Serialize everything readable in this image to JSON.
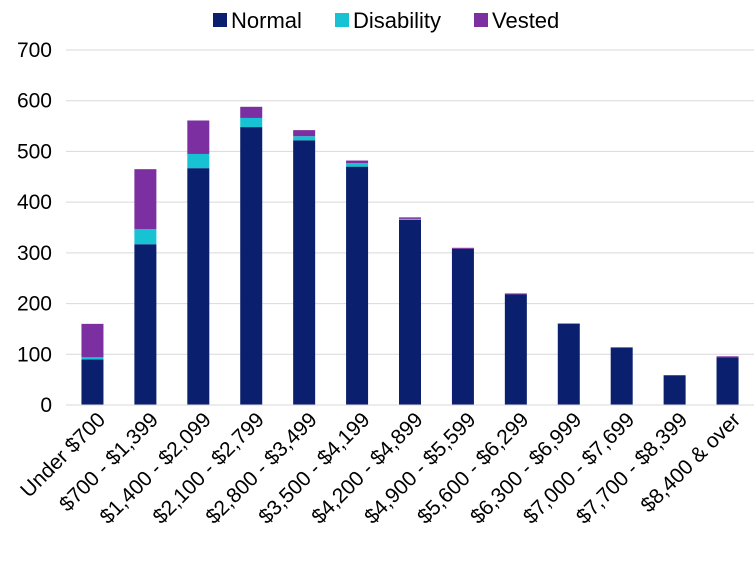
{
  "chart_data": {
    "type": "bar",
    "stacked": true,
    "categories": [
      "Under $700",
      "$700 - $1,399",
      "$1,400 - $2,099",
      "$2,100 - $2,799",
      "$2,800 - $3,499",
      "$3,500 - $4,199",
      "$4,200 - $4,899",
      "$4,900 - $5,599",
      "$5,600 - $6,299",
      "$6,300 - $6,999",
      "$7,000 - $7,699",
      "$7,700 - $8,399",
      "$8,400 & over"
    ],
    "series": [
      {
        "name": "Normal",
        "color": "#0a1f6e",
        "values": [
          90,
          317,
          467,
          548,
          522,
          470,
          365,
          308,
          218,
          160,
          113,
          58,
          94
        ]
      },
      {
        "name": "Disability",
        "color": "#17c3d2",
        "values": [
          4,
          30,
          28,
          18,
          8,
          7,
          2,
          0,
          0,
          0,
          0,
          0,
          0
        ]
      },
      {
        "name": "Vested",
        "color": "#7b2fa0",
        "values": [
          66,
          118,
          66,
          22,
          12,
          5,
          3,
          2,
          2,
          1,
          1,
          1,
          2
        ]
      }
    ],
    "ylim": [
      0,
      700
    ],
    "yticks": [
      0,
      100,
      200,
      300,
      400,
      500,
      600,
      700
    ],
    "grid": true,
    "legend_position": "top",
    "title": "",
    "xlabel": "",
    "ylabel": ""
  }
}
